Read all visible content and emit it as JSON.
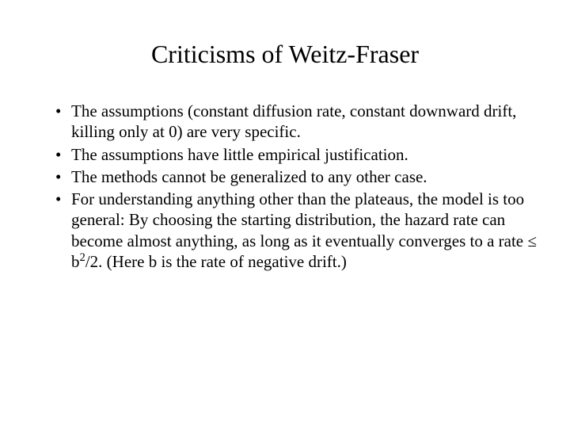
{
  "title": "Criticisms of Weitz-Fraser",
  "bullets": [
    {
      "text": "The assumptions (constant diffusion rate, constant downward drift, killing only at 0) are very specific."
    },
    {
      "text": "The assumptions have little empirical justification."
    },
    {
      "text": "The methods cannot be generalized to any other case."
    },
    {
      "prefix": "For understanding anything other than the plateaus, the model is too general: By choosing the starting distribution, the hazard rate can become almost anything, as long as it eventually converges to a rate ≤ b",
      "sup": "2",
      "suffix": "/2.  (Here b is the rate of negative drift.)"
    }
  ],
  "colors": {
    "background": "#ffffff",
    "text": "#000000"
  },
  "typography": {
    "title_fontsize": 32,
    "body_fontsize": 21,
    "font_family": "Times New Roman"
  }
}
